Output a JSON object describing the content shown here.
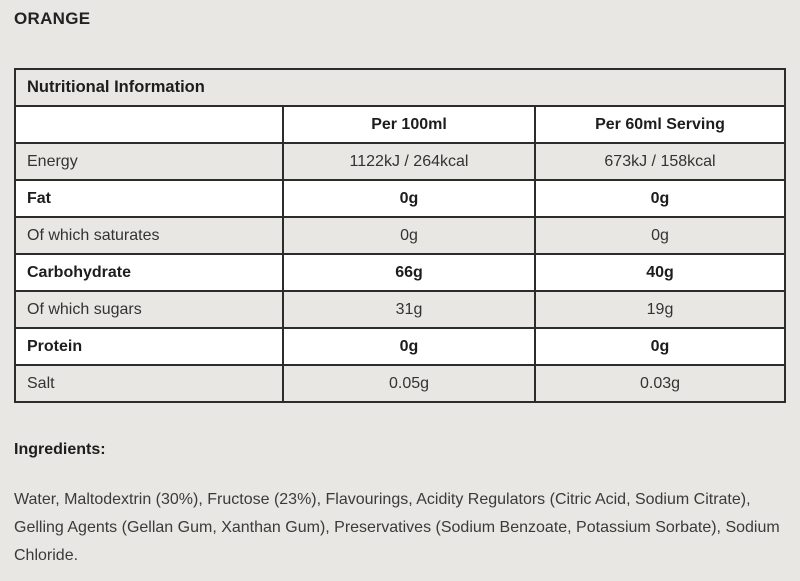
{
  "page": {
    "title": "ORANGE",
    "background_color": "#e9e7e3",
    "border_color": "#2c2c2c",
    "row_stripe_color": "#e9e7e3",
    "row_white_color": "#ffffff"
  },
  "table": {
    "header": "Nutritional Information",
    "columns": [
      "",
      "Per 100ml",
      "Per 60ml Serving"
    ],
    "rows": [
      {
        "label": "Energy",
        "per100ml": "1122kJ / 264kcal",
        "per60ml": "673kJ / 158kcal",
        "bold": false
      },
      {
        "label": "Fat",
        "per100ml": "0g",
        "per60ml": "0g",
        "bold": true
      },
      {
        "label": "Of which saturates",
        "per100ml": "0g",
        "per60ml": "0g",
        "bold": false
      },
      {
        "label": "Carbohydrate",
        "per100ml": "66g",
        "per60ml": "40g",
        "bold": true
      },
      {
        "label": "Of which sugars",
        "per100ml": "31g",
        "per60ml": "19g",
        "bold": false
      },
      {
        "label": "Protein",
        "per100ml": "0g",
        "per60ml": "0g",
        "bold": true
      },
      {
        "label": "Salt",
        "per100ml": "0.05g",
        "per60ml": "0.03g",
        "bold": false
      }
    ]
  },
  "ingredients": {
    "heading": "Ingredients:",
    "text": "Water, Maltodextrin (30%), Fructose (23%), Flavourings, Acidity Regulators (Citric Acid, Sodium Citrate), Gelling Agents (Gellan Gum, Xanthan Gum), Preservatives (Sodium Benzoate, Potassium Sorbate), Sodium Chloride."
  }
}
